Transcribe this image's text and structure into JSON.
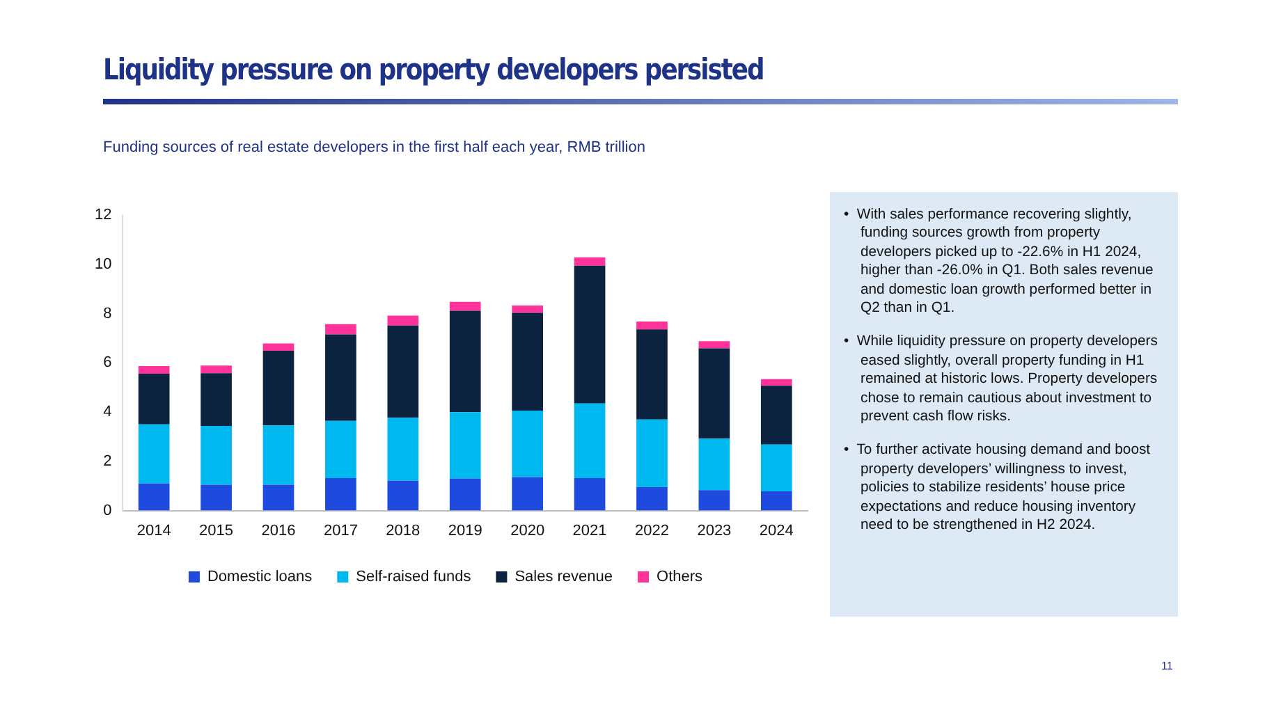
{
  "chart_data": {
    "type": "bar",
    "title": "Liquidity pressure on property developers persisted",
    "subtitle": "Funding sources of real estate developers in the first half each year, RMB trillion",
    "categories": [
      "2014",
      "2015",
      "2016",
      "2017",
      "2018",
      "2019",
      "2020",
      "2021",
      "2022",
      "2023",
      "2024"
    ],
    "stacked": true,
    "series": [
      {
        "name": "Domestic loans",
        "color": "#1f4ae0",
        "values": [
          1.1,
          1.05,
          1.05,
          1.32,
          1.21,
          1.3,
          1.36,
          1.32,
          0.96,
          0.83,
          0.78
        ]
      },
      {
        "name": "Self-raised funds",
        "color": "#00b8f0",
        "values": [
          2.4,
          2.39,
          2.41,
          2.32,
          2.56,
          2.7,
          2.7,
          3.03,
          2.74,
          2.09,
          1.9
        ]
      },
      {
        "name": "Sales revenue",
        "color": "#0c2340",
        "values": [
          2.06,
          2.14,
          3.03,
          3.52,
          3.75,
          4.12,
          3.97,
          5.6,
          3.66,
          3.67,
          2.39
        ]
      },
      {
        "name": "Others",
        "color": "#ff3399",
        "values": [
          0.31,
          0.31,
          0.3,
          0.41,
          0.4,
          0.36,
          0.3,
          0.34,
          0.32,
          0.29,
          0.27
        ]
      }
    ],
    "ylim": [
      0,
      12
    ],
    "yticks": [
      0,
      2,
      4,
      6,
      8,
      10,
      12
    ],
    "grid": false,
    "legend": "bottom",
    "annotations": [
      "•  With sales performance recovering slightly, funding sources growth from property developers picked up to -22.6% in H1 2024, higher than -26.0% in Q1. Both sales revenue and domestic loan growth performed better in Q2 than in Q1.",
      "•  While liquidity pressure on property developers eased slightly, overall property funding in H1 remained at historic lows. Property developers chose to remain cautious about investment to prevent cash flow risks.",
      "•  To further activate housing demand and boost property developers’ willingness to invest, policies to stabilize residents’ house price expectations and reduce housing inventory need to be strengthened in H2 2024.",
      "11"
    ]
  }
}
